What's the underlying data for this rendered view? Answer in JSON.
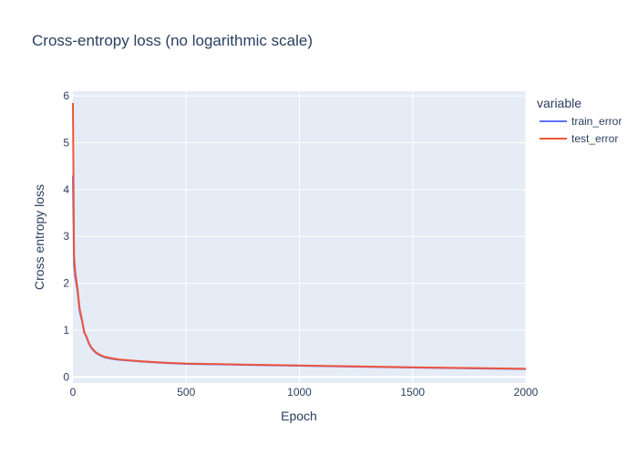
{
  "chart_data": {
    "type": "line",
    "title": "Cross-entropy loss (no logarithmic scale)",
    "xlabel": "Epoch",
    "ylabel": "Cross entropy loss",
    "xlim": [
      0,
      2000
    ],
    "ylim": [
      -0.13,
      6.1
    ],
    "xticks": [
      "0",
      "500",
      "1000",
      "1500",
      "2000"
    ],
    "yticks": [
      "0",
      "1",
      "2",
      "3",
      "4",
      "5",
      "6"
    ],
    "grid": true,
    "legend": {
      "title": "variable",
      "placement": "top-right"
    },
    "x": [
      0,
      5,
      10,
      20,
      30,
      40,
      50,
      60,
      70,
      80,
      90,
      100,
      120,
      140,
      160,
      180,
      200,
      250,
      300,
      400,
      500,
      750,
      1000,
      1250,
      1500,
      1750,
      2000
    ],
    "series": [
      {
        "name": "train_error",
        "color": "#636efa",
        "values": [
          4.3,
          2.4,
          2.15,
          1.85,
          1.4,
          1.2,
          0.95,
          0.85,
          0.72,
          0.63,
          0.57,
          0.52,
          0.46,
          0.42,
          0.4,
          0.38,
          0.37,
          0.35,
          0.33,
          0.3,
          0.28,
          0.26,
          0.24,
          0.22,
          0.2,
          0.185,
          0.17
        ]
      },
      {
        "name": "test_error",
        "color": "#ef553b",
        "values": [
          5.85,
          2.6,
          2.25,
          1.9,
          1.45,
          1.22,
          0.96,
          0.86,
          0.73,
          0.64,
          0.58,
          0.53,
          0.47,
          0.43,
          0.41,
          0.39,
          0.375,
          0.355,
          0.335,
          0.305,
          0.285,
          0.265,
          0.245,
          0.225,
          0.205,
          0.19,
          0.175
        ]
      }
    ]
  }
}
